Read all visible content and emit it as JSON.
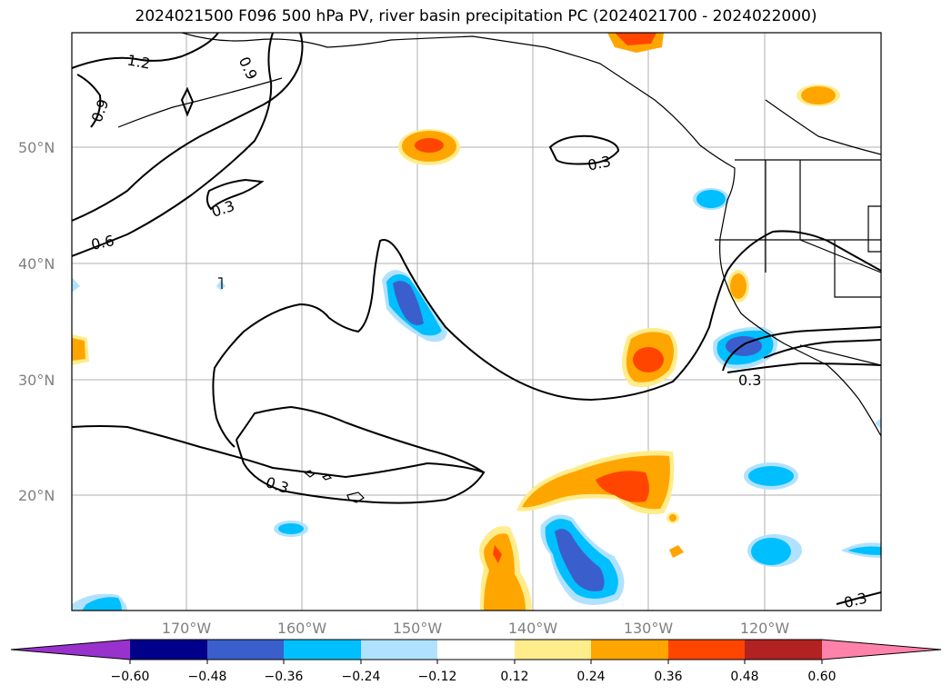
{
  "title": "2024021500 F096 500 hPa PV, river basin precipitation PC (2024021700 - 2024022000)",
  "map": {
    "lat_labels": [
      "50°N",
      "40°N",
      "30°N",
      "20°N"
    ],
    "lon_labels": [
      "170°W",
      "160°W",
      "150°W",
      "140°W",
      "130°W",
      "120°W"
    ],
    "contour_labels": [
      "1.2",
      "0.9",
      "0.9",
      "0.6",
      "0.3",
      "0.3",
      "0.3",
      "0.3",
      "0.3"
    ]
  },
  "colorbar": {
    "ticks": [
      "−0.60",
      "−0.48",
      "−0.36",
      "−0.24",
      "−0.12",
      "0.12",
      "0.24",
      "0.36",
      "0.48",
      "0.60"
    ],
    "colors": [
      "#9932cc",
      "#00008b",
      "#3a5fcd",
      "#00bfff",
      "#b0e2ff",
      "#ffffff",
      "#ffec8b",
      "#ffa500",
      "#ff4500",
      "#b22222",
      "#ff82ab"
    ]
  }
}
